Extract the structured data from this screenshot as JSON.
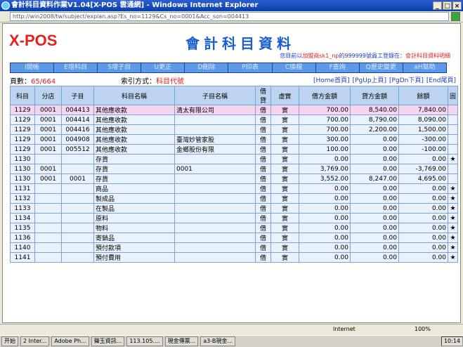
{
  "window": {
    "title": "會計科目資料作業V1.04[X-POS 雲通網] - Windows Internet Explorer",
    "url": "http://win2008/tw/subject/explan.asp?Es_no=1129&Cs_no=0001&Acc_son=004413"
  },
  "page": {
    "logo": "X-POS",
    "heading": "會計科目資料",
    "info_prefix": "您目前以",
    "info_store": "加盟商sk1_np",
    "info_mid": "的999999號員工登錄在：",
    "info_page": "會計科目資料明細"
  },
  "toolbar": [
    "I開帳",
    "E增科目",
    "S增子目",
    "U更正",
    "D刪除",
    "P印表",
    "C換檔",
    "F查詢",
    "Q歷史變更",
    "aH幫助"
  ],
  "pager": {
    "label": "頁數：",
    "value": "65/664",
    "index_label": "索引方式：",
    "index_value": "科目代號",
    "nav": [
      "[Home首頁]",
      "[PgUp上頁]",
      "[PgDn下頁]",
      "[End尾頁]"
    ]
  },
  "table": {
    "headers": [
      "科目",
      "分店",
      "子目",
      "科目名稱",
      "子目名稱",
      "借貸",
      "虛實",
      "借方金額",
      "貸方金額",
      "餘額",
      "固"
    ],
    "rows": [
      [
        "1129",
        "0001",
        "004413",
        "其他應收款",
        "清太有限公司",
        "借",
        "實",
        "700.00",
        "8,540.00",
        "7,840.00",
        ""
      ],
      [
        "1129",
        "0001",
        "004414",
        "其他應收款",
        "",
        "借",
        "實",
        "700.00",
        "8,790.00",
        "8,090.00",
        ""
      ],
      [
        "1129",
        "0001",
        "004416",
        "其他應收款",
        "",
        "借",
        "實",
        "700.00",
        "2,200.00",
        "1,500.00",
        ""
      ],
      [
        "1129",
        "0001",
        "004908",
        "其他應收款",
        "臺灣妙管家股",
        "借",
        "實",
        "300.00",
        "0.00",
        "-300.00",
        ""
      ],
      [
        "1129",
        "0001",
        "005512",
        "其他應收款",
        "金鄉股份有限",
        "借",
        "實",
        "100.00",
        "0.00",
        "-100.00",
        ""
      ],
      [
        "1130",
        "",
        "",
        "存貨",
        "",
        "借",
        "實",
        "0.00",
        "0.00",
        "0.00",
        "★"
      ],
      [
        "1130",
        "0001",
        "",
        "存貨",
        "0001",
        "借",
        "實",
        "3,769.00",
        "0.00",
        "-3,769.00",
        ""
      ],
      [
        "1130",
        "0001",
        "0001",
        "存貨",
        "",
        "借",
        "實",
        "3,552.00",
        "8,247.00",
        "4,695.00",
        ""
      ],
      [
        "1131",
        "",
        "",
        "商品",
        "",
        "借",
        "實",
        "0.00",
        "0.00",
        "0.00",
        "★"
      ],
      [
        "1132",
        "",
        "",
        "製成品",
        "",
        "借",
        "實",
        "0.00",
        "0.00",
        "0.00",
        "★"
      ],
      [
        "1133",
        "",
        "",
        "在製品",
        "",
        "借",
        "實",
        "0.00",
        "0.00",
        "0.00",
        "★"
      ],
      [
        "1134",
        "",
        "",
        "原料",
        "",
        "借",
        "實",
        "0.00",
        "0.00",
        "0.00",
        "★"
      ],
      [
        "1135",
        "",
        "",
        "物料",
        "",
        "借",
        "實",
        "0.00",
        "0.00",
        "0.00",
        "★"
      ],
      [
        "1136",
        "",
        "",
        "寄銷品",
        "",
        "借",
        "實",
        "0.00",
        "0.00",
        "0.00",
        "★"
      ],
      [
        "1140",
        "",
        "",
        "預付款項",
        "",
        "借",
        "實",
        "0.00",
        "0.00",
        "0.00",
        "★"
      ],
      [
        "1141",
        "",
        "",
        "預付費用",
        "",
        "借",
        "實",
        "0.00",
        "0.00",
        "0.00",
        "★"
      ]
    ]
  },
  "status": {
    "zone": "Internet",
    "zoom": "100%"
  },
  "taskbar": {
    "start": "开始",
    "items": [
      "2 Inter...",
      "Adobe Ph...",
      "聲玉資訊...",
      "113.105....",
      "現金傳票...",
      "a3-B現金..."
    ],
    "clock": "10:14"
  }
}
